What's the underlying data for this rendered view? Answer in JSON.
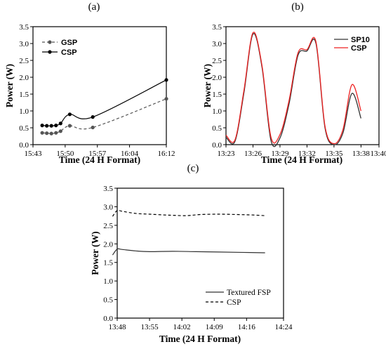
{
  "chart_data": [
    {
      "panel_label": "(a)",
      "type": "line",
      "xlabel": "Time (24 H Format)",
      "ylabel": "Power (W)",
      "x_ticks": [
        "15:43",
        "15:50",
        "15:57",
        "16:04",
        "16:12"
      ],
      "y_ticks": [
        "0.0",
        "0.5",
        "1.0",
        "1.5",
        "2.0",
        "2.5",
        "3.0",
        "3.5"
      ],
      "ylim": [
        0,
        3.5
      ],
      "legend_position": "upper-left",
      "grid": false,
      "series": [
        {
          "name": "GSP",
          "color": "#555555",
          "line_style": "dashed",
          "marker": "circle",
          "x": [
            "15:45",
            "15:46",
            "15:47",
            "15:48",
            "15:49",
            "15:51",
            "15:56",
            "16:12"
          ],
          "y": [
            0.35,
            0.34,
            0.33,
            0.35,
            0.4,
            0.56,
            0.51,
            1.36
          ]
        },
        {
          "name": "CSP",
          "color": "#000000",
          "line_style": "solid",
          "marker": "circle",
          "x": [
            "15:45",
            "15:46",
            "15:47",
            "15:48",
            "15:49",
            "15:51",
            "15:56",
            "16:12"
          ],
          "y": [
            0.57,
            0.56,
            0.56,
            0.57,
            0.63,
            0.9,
            0.82,
            1.92
          ]
        }
      ]
    },
    {
      "panel_label": "(b)",
      "type": "line",
      "xlabel": "Time (24 H Format)",
      "ylabel": "Power (W)",
      "x_ticks": [
        "13:23",
        "13:26",
        "13:29",
        "13:32",
        "13:35",
        "13:38",
        "13:40"
      ],
      "y_ticks": [
        "0.0",
        "0.5",
        "1.0",
        "1.5",
        "2.0",
        "2.5",
        "3.0",
        "3.5"
      ],
      "ylim": [
        0,
        3.5
      ],
      "legend_position": "upper-right",
      "grid": false,
      "series": [
        {
          "name": "SP10",
          "color": "#333333",
          "line_style": "solid",
          "x": [
            "13:23",
            "13:24",
            "13:25",
            "13:26",
            "13:27",
            "13:28",
            "13:29",
            "13:30",
            "13:31",
            "13:32",
            "13:33",
            "13:34",
            "13:35",
            "13:36",
            "13:37",
            "13:38"
          ],
          "y": [
            0.22,
            0.1,
            1.55,
            3.28,
            2.3,
            0.12,
            0.2,
            1.2,
            2.65,
            2.78,
            3.0,
            0.5,
            0.0,
            0.35,
            1.52,
            0.78
          ]
        },
        {
          "name": "CSP",
          "color": "#ee2222",
          "line_style": "solid",
          "x": [
            "13:23",
            "13:24",
            "13:25",
            "13:26",
            "13:27",
            "13:28",
            "13:29",
            "13:30",
            "13:31",
            "13:32",
            "13:33",
            "13:34",
            "13:35",
            "13:36",
            "13:37",
            "13:38"
          ],
          "y": [
            0.28,
            0.14,
            1.62,
            3.32,
            2.35,
            0.22,
            0.3,
            1.3,
            2.72,
            2.82,
            3.05,
            0.55,
            0.03,
            0.45,
            1.78,
            1.0
          ]
        }
      ]
    },
    {
      "panel_label": "(c)",
      "type": "line",
      "xlabel": "Time (24 H Format)",
      "ylabel": "Power (W)",
      "x_ticks": [
        "13:48",
        "13:55",
        "14:02",
        "14:09",
        "14:16",
        "14:24"
      ],
      "y_ticks": [
        "0.0",
        "0.5",
        "1.0",
        "1.5",
        "2.0",
        "2.5",
        "3.0",
        "3.5"
      ],
      "ylim": [
        0,
        3.5
      ],
      "legend_position": "lower-left",
      "grid": false,
      "series": [
        {
          "name": "Textured FSP",
          "color": "#333333",
          "line_style": "solid",
          "x": [
            "13:47",
            "13:48",
            "13:49",
            "13:52",
            "13:55",
            "14:00",
            "14:05",
            "14:10",
            "14:15",
            "14:20"
          ],
          "y": [
            1.7,
            1.86,
            1.85,
            1.81,
            1.79,
            1.8,
            1.79,
            1.78,
            1.77,
            1.76
          ]
        },
        {
          "name": "CSP",
          "color": "#000000",
          "line_style": "dashed",
          "x": [
            "13:47",
            "13:48",
            "13:49",
            "13:52",
            "13:55",
            "13:58",
            "14:00",
            "14:03",
            "14:06",
            "14:10",
            "14:14",
            "14:17",
            "14:20"
          ],
          "y": [
            2.74,
            2.9,
            2.88,
            2.82,
            2.8,
            2.78,
            2.77,
            2.76,
            2.79,
            2.8,
            2.79,
            2.78,
            2.76
          ]
        }
      ]
    }
  ]
}
